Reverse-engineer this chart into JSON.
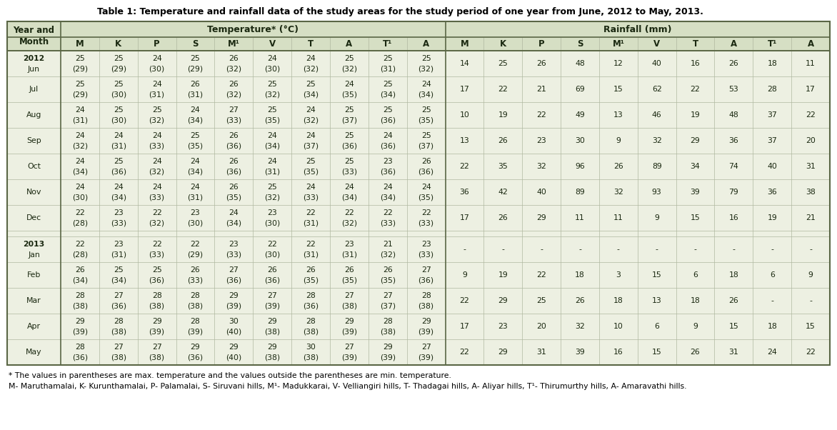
{
  "title": "Table 1: Temperature and rainfall data of the study areas for the study period of one year from June, 2012 to May, 2013.",
  "footnote1": "* The values in parentheses are max. temperature and the values outside the parentheses are min. temperature.",
  "footnote2": "M- Maruthamalai, K- Kurunthamalai, P- Palamalai, S- Siruvani hills, M¹- Madukkarai, V- Velliangiri hills, T- Thadagai hills, A- Aliyar hills, T¹- Thirumurthy hills, A- Amaravathi hills.",
  "col_headers": [
    "M",
    "K",
    "P",
    "S",
    "M¹",
    "V",
    "T",
    "A",
    "T¹",
    "A"
  ],
  "temp_group_label": "Temperature* (°C)",
  "rain_group_label": "Rainfall (mm)",
  "year_month_label": "Year and\nMonth",
  "months": [
    "Jun",
    "Jul",
    "Aug",
    "Sep",
    "Oct",
    "Nov",
    "Dec",
    "Jan",
    "Feb",
    "Mar",
    "Apr",
    "May"
  ],
  "years": [
    "2012",
    "",
    "",
    "",
    "",
    "",
    "",
    "2013",
    "",
    "",
    "",
    ""
  ],
  "temp_data": [
    [
      "25\n(29)",
      "25\n(29)",
      "24\n(30)",
      "25\n(29)",
      "26\n(32)",
      "24\n(30)",
      "24\n(32)",
      "25\n(32)",
      "25\n(31)",
      "25\n(32)"
    ],
    [
      "25\n(29)",
      "25\n(30)",
      "24\n(31)",
      "26\n(31)",
      "26\n(32)",
      "25\n(32)",
      "25\n(34)",
      "24\n(35)",
      "25\n(34)",
      "24\n(34)"
    ],
    [
      "24\n(31)",
      "25\n(30)",
      "25\n(32)",
      "24\n(34)",
      "27\n(33)",
      "25\n(35)",
      "24\n(32)",
      "25\n(37)",
      "25\n(36)",
      "25\n(35)"
    ],
    [
      "24\n(32)",
      "24\n(31)",
      "24\n(33)",
      "25\n(35)",
      "26\n(36)",
      "24\n(34)",
      "24\n(37)",
      "25\n(36)",
      "24\n(36)",
      "25\n(37)"
    ],
    [
      "24\n(34)",
      "25\n(36)",
      "24\n(32)",
      "24\n(34)",
      "26\n(36)",
      "24\n(31)",
      "25\n(35)",
      "25\n(33)",
      "23\n(36)",
      "26\n(36)"
    ],
    [
      "24\n(30)",
      "24\n(34)",
      "24\n(33)",
      "24\n(31)",
      "26\n(35)",
      "25\n(32)",
      "24\n(33)",
      "24\n(34)",
      "24\n(34)",
      "24\n(35)"
    ],
    [
      "22\n(28)",
      "23\n(33)",
      "22\n(32)",
      "23\n(30)",
      "24\n(34)",
      "23\n(30)",
      "22\n(31)",
      "22\n(32)",
      "22\n(33)",
      "22\n(33)"
    ],
    [
      "22\n(28)",
      "23\n(31)",
      "22\n(33)",
      "22\n(29)",
      "23\n(33)",
      "22\n(30)",
      "22\n(31)",
      "23\n(31)",
      "21\n(32)",
      "23\n(33)"
    ],
    [
      "26\n(34)",
      "25\n(34)",
      "25\n(36)",
      "26\n(33)",
      "27\n(36)",
      "26\n(36)",
      "26\n(35)",
      "26\n(35)",
      "26\n(35)",
      "27\n(36)"
    ],
    [
      "28\n(38)",
      "27\n(36)",
      "28\n(38)",
      "28\n(38)",
      "29\n(39)",
      "27\n(39)",
      "28\n(36)",
      "27\n(38)",
      "27\n(37)",
      "28\n(38)"
    ],
    [
      "29\n(39)",
      "28\n(38)",
      "29\n(39)",
      "28\n(39)",
      "30\n(40)",
      "29\n(38)",
      "28\n(38)",
      "29\n(39)",
      "28\n(38)",
      "29\n(39)"
    ],
    [
      "28\n(36)",
      "27\n(38)",
      "27\n(38)",
      "29\n(36)",
      "29\n(40)",
      "29\n(38)",
      "30\n(38)",
      "27\n(39)",
      "29\n(39)",
      "27\n(39)"
    ]
  ],
  "rain_data": [
    [
      "14",
      "25",
      "26",
      "48",
      "12",
      "40",
      "16",
      "26",
      "18",
      "11"
    ],
    [
      "17",
      "22",
      "21",
      "69",
      "15",
      "62",
      "22",
      "53",
      "28",
      "17"
    ],
    [
      "10",
      "19",
      "22",
      "49",
      "13",
      "46",
      "19",
      "48",
      "37",
      "22"
    ],
    [
      "13",
      "26",
      "23",
      "30",
      "9",
      "32",
      "29",
      "36",
      "37",
      "20"
    ],
    [
      "22",
      "35",
      "32",
      "96",
      "26",
      "89",
      "34",
      "74",
      "40",
      "31"
    ],
    [
      "36",
      "42",
      "40",
      "89",
      "32",
      "93",
      "39",
      "79",
      "36",
      "38"
    ],
    [
      "17",
      "26",
      "29",
      "11",
      "11",
      "9",
      "15",
      "16",
      "19",
      "21"
    ],
    [
      "-",
      "-",
      "-",
      "-",
      "-",
      "-",
      "-",
      "-",
      "-",
      "-"
    ],
    [
      "9",
      "19",
      "22",
      "18",
      "3",
      "15",
      "6",
      "18",
      "6",
      "9"
    ],
    [
      "22",
      "29",
      "25",
      "26",
      "18",
      "13",
      "18",
      "26",
      "-",
      "-"
    ],
    [
      "17",
      "23",
      "20",
      "32",
      "10",
      "6",
      "9",
      "15",
      "18",
      "15"
    ],
    [
      "22",
      "29",
      "31",
      "39",
      "16",
      "15",
      "26",
      "31",
      "24",
      "22"
    ]
  ],
  "header_bg": "#d6dfc4",
  "table_bg": "#edf0e2",
  "text_color": "#1a2810",
  "border_color": "#5a6645",
  "light_line_color": "#b0b8a0"
}
